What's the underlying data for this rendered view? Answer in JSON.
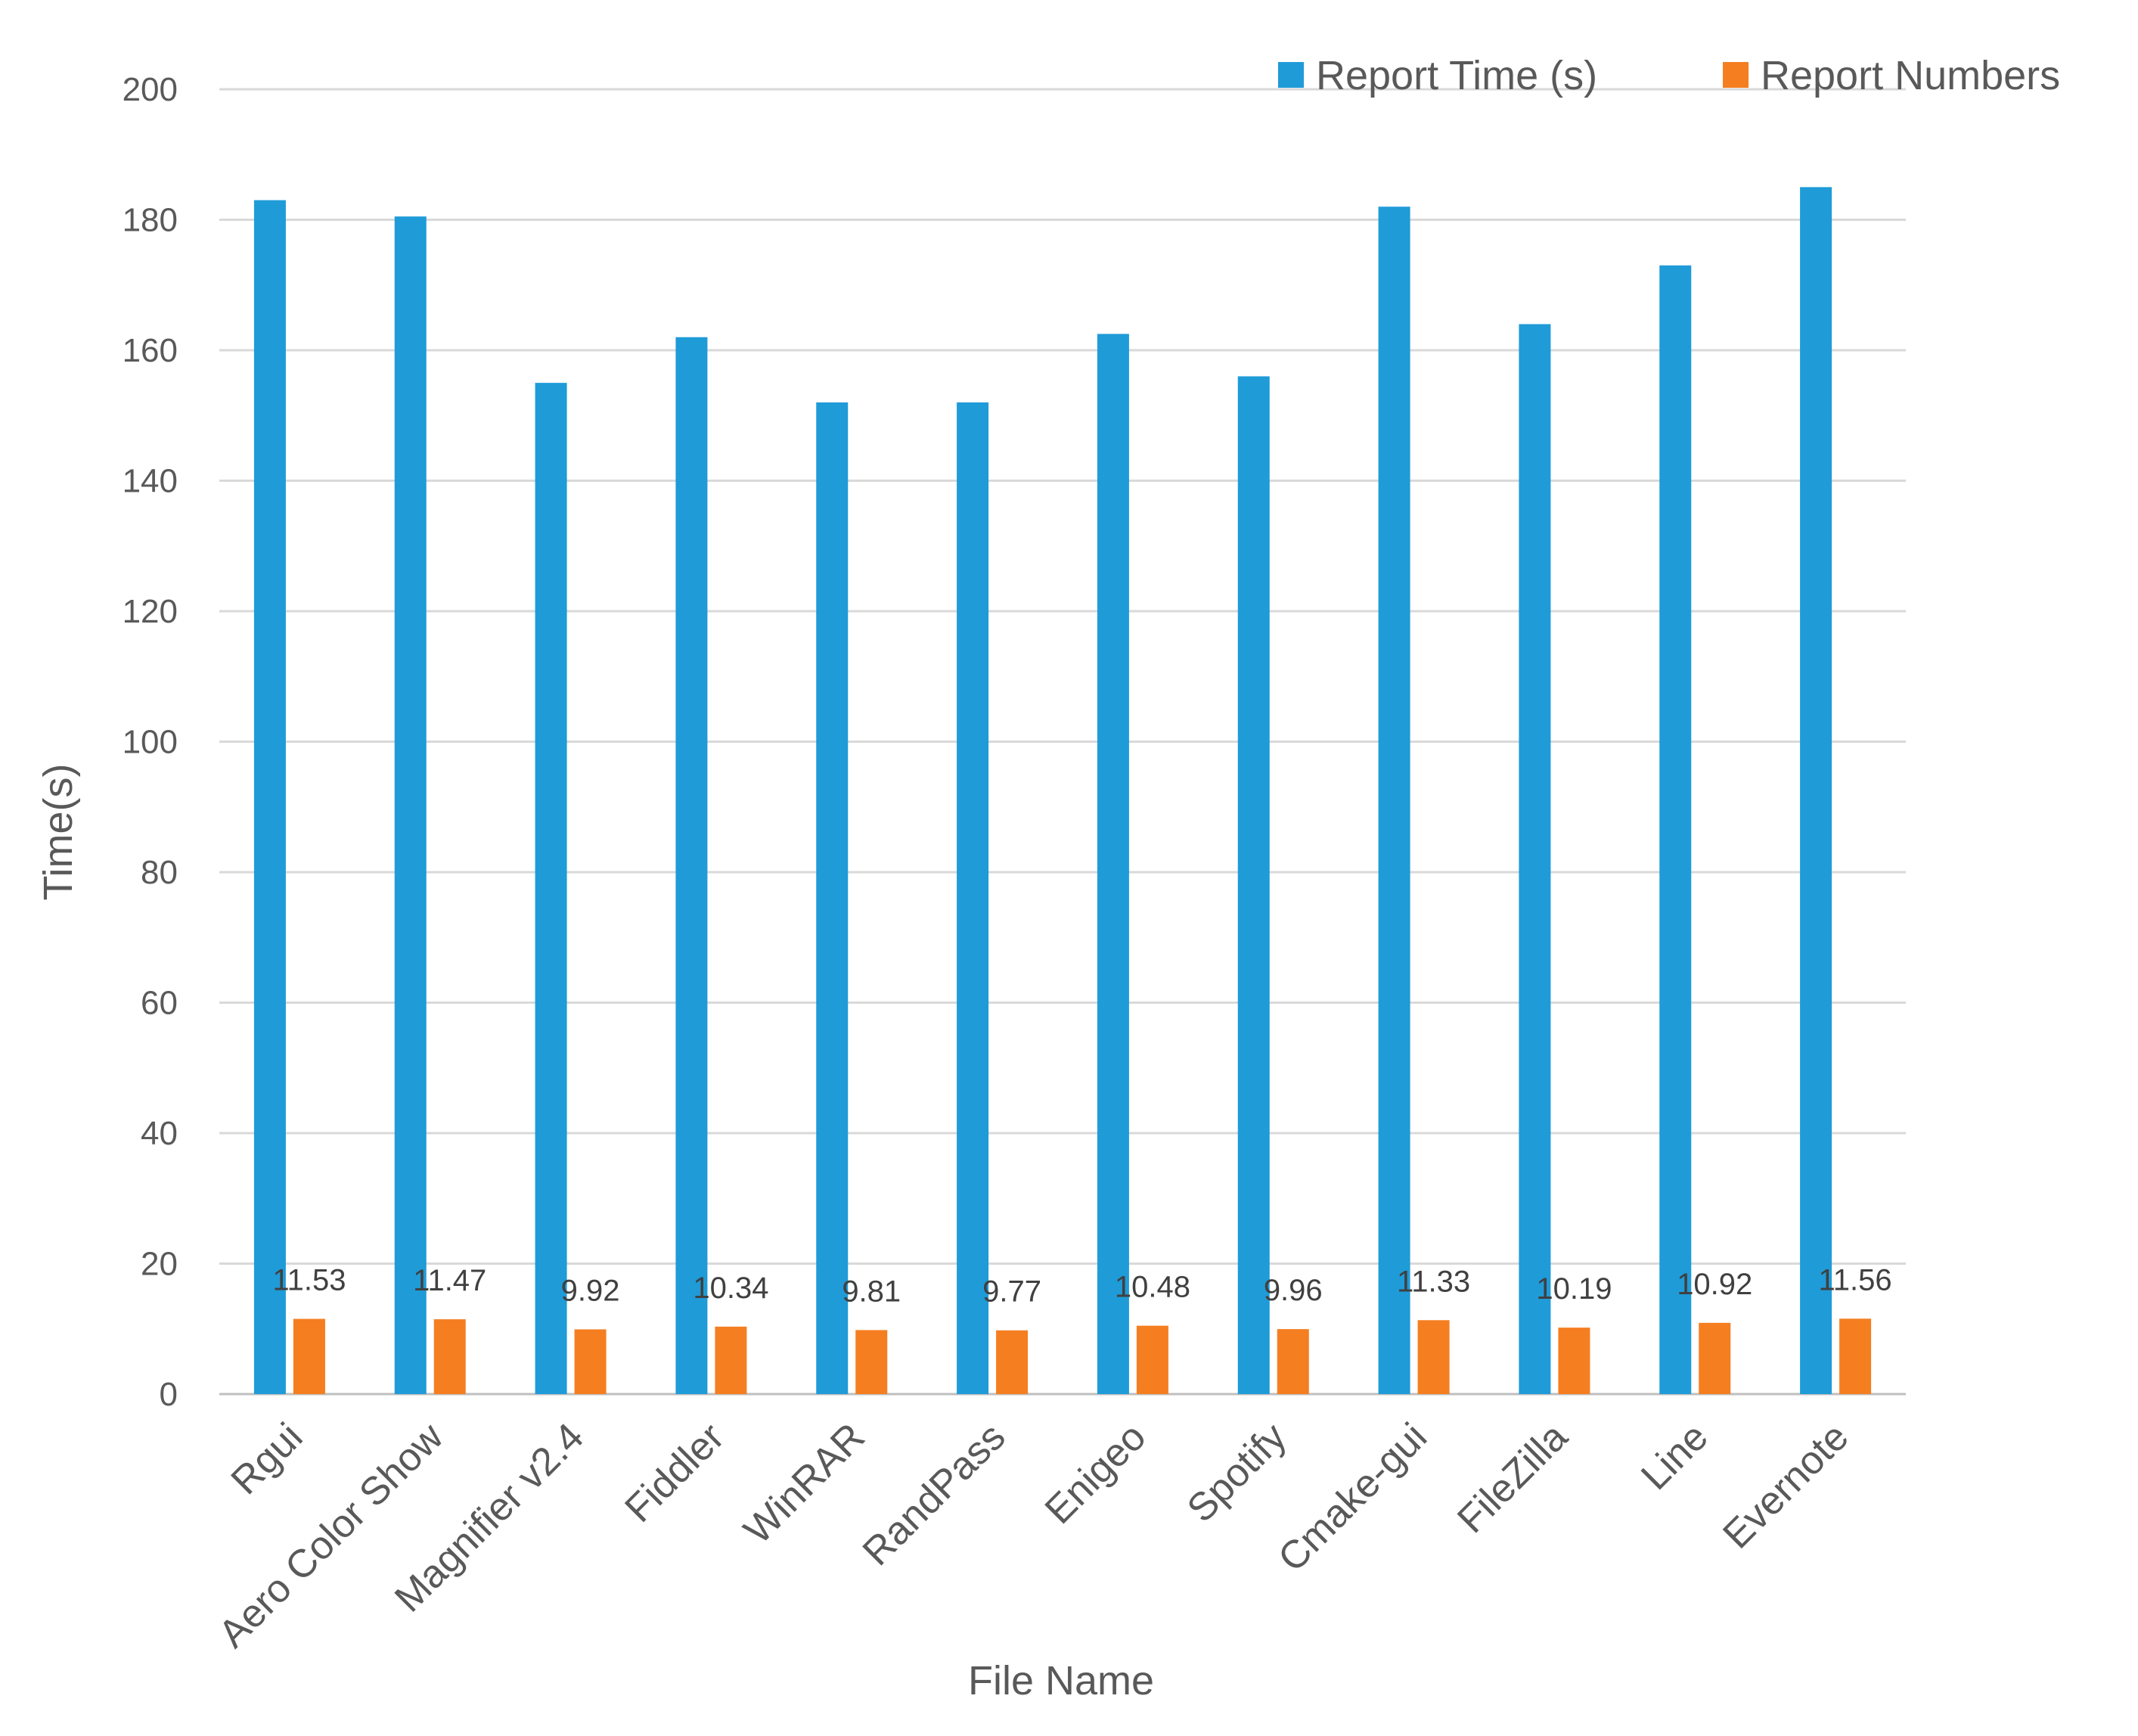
{
  "chart_data": {
    "type": "bar",
    "title": "",
    "xlabel": "File Name",
    "ylabel": "Time(s)",
    "ylim": [
      0,
      200
    ],
    "yticks": [
      0,
      20,
      40,
      60,
      80,
      100,
      120,
      140,
      160,
      180,
      200
    ],
    "grid": true,
    "legend_position": "top-right",
    "categories": [
      "Rgui",
      "Aero Color Show",
      "Magnifier v2.4",
      "Fiddler",
      "WinRAR",
      "RandPass",
      "Enigeo",
      "Spotify",
      "Cmake-gui",
      "FileZilla",
      "Line",
      "Evernote"
    ],
    "series": [
      {
        "name": "Report Time (s)",
        "color": "#1f9bd8",
        "values": [
          183,
          180.5,
          155,
          162,
          152,
          152,
          162.5,
          156,
          182,
          164,
          173,
          185
        ],
        "show_labels": false
      },
      {
        "name": "Report Numbers",
        "color": "#f57e20",
        "values": [
          11.53,
          11.47,
          9.92,
          10.34,
          9.81,
          9.77,
          10.48,
          9.96,
          11.33,
          10.19,
          10.92,
          11.56
        ],
        "labels": [
          "11.53",
          "11.47",
          "9.92",
          "10.34",
          "9.81",
          "9.77",
          "10.48",
          "9.96",
          "11.33",
          "10.19",
          "10.92",
          "11.56"
        ],
        "show_labels": true
      }
    ]
  }
}
